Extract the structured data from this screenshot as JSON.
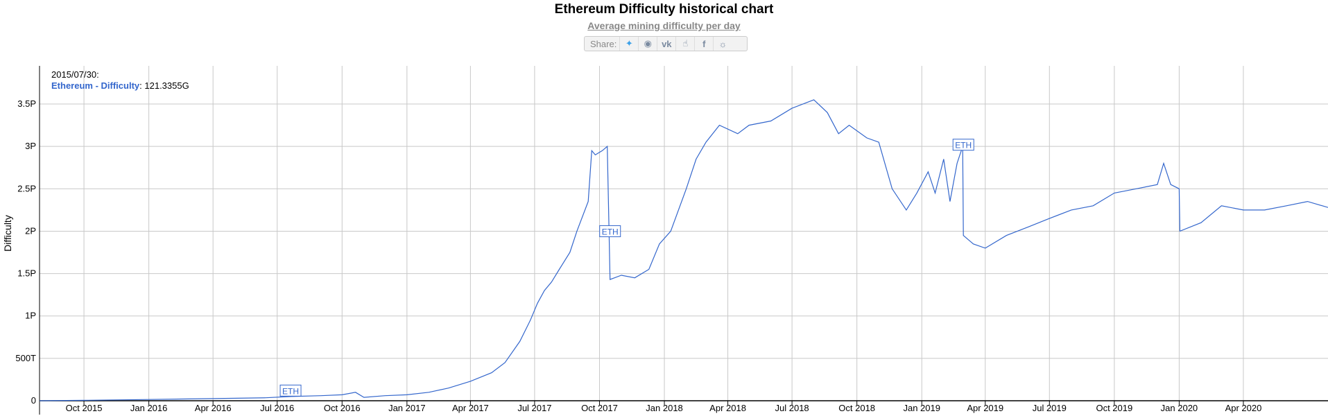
{
  "header": {
    "title": "Ethereum Difficulty historical chart",
    "subtitle": "Average mining difficulty per day"
  },
  "share": {
    "label": "Share:",
    "icons": [
      "twitter-icon",
      "reddit-icon",
      "vk-icon",
      "like-icon",
      "facebook-icon",
      "weibo-icon"
    ]
  },
  "readout": {
    "date": "2015/07/30:",
    "series_name": "Ethereum - Difficulty",
    "sep": ":",
    "value": "121.3355G"
  },
  "colors": {
    "line": "#3366cc",
    "grid": "#c8c8c8",
    "axis": "#000000"
  },
  "chart_data": {
    "type": "line",
    "title": "Ethereum Difficulty historical chart",
    "subtitle": "Average mining difficulty per day",
    "ylabel": "Difficulty",
    "xlabel": "",
    "y_ticks": [
      {
        "value": 0,
        "label": "0"
      },
      {
        "value": 500,
        "label": "500T"
      },
      {
        "value": 1000,
        "label": "1P"
      },
      {
        "value": 1500,
        "label": "1.5P"
      },
      {
        "value": 2000,
        "label": "2P"
      },
      {
        "value": 2500,
        "label": "2.5P"
      },
      {
        "value": 3000,
        "label": "3P"
      },
      {
        "value": 3500,
        "label": "3.5P"
      }
    ],
    "y_units": "TH",
    "ylim": [
      0,
      3950
    ],
    "xlim": [
      "2015-07-30",
      "2020-07-30"
    ],
    "x_ticks": [
      {
        "date": "2015-10-01",
        "label": "Oct 2015"
      },
      {
        "date": "2016-01-01",
        "label": "Jan 2016"
      },
      {
        "date": "2016-04-01",
        "label": "Apr 2016"
      },
      {
        "date": "2016-07-01",
        "label": "Jul 2016"
      },
      {
        "date": "2016-10-01",
        "label": "Oct 2016"
      },
      {
        "date": "2017-01-01",
        "label": "Jan 2017"
      },
      {
        "date": "2017-04-01",
        "label": "Apr 2017"
      },
      {
        "date": "2017-07-01",
        "label": "Jul 2017"
      },
      {
        "date": "2017-10-01",
        "label": "Oct 2017"
      },
      {
        "date": "2018-01-01",
        "label": "Jan 2018"
      },
      {
        "date": "2018-04-01",
        "label": "Apr 2018"
      },
      {
        "date": "2018-07-01",
        "label": "Jul 2018"
      },
      {
        "date": "2018-10-01",
        "label": "Oct 2018"
      },
      {
        "date": "2019-01-01",
        "label": "Jan 2019"
      },
      {
        "date": "2019-04-01",
        "label": "Apr 2019"
      },
      {
        "date": "2019-07-01",
        "label": "Jul 2019"
      },
      {
        "date": "2019-10-01",
        "label": "Oct 2019"
      },
      {
        "date": "2020-01-01",
        "label": "Jan 2020"
      },
      {
        "date": "2020-04-01",
        "label": "Apr 2020"
      }
    ],
    "grid": true,
    "series": [
      {
        "name": "Ethereum - Difficulty",
        "points": [
          [
            "2015-07-30",
            0.12
          ],
          [
            "2015-10-01",
            5
          ],
          [
            "2016-01-01",
            15
          ],
          [
            "2016-04-01",
            25
          ],
          [
            "2016-06-15",
            35
          ],
          [
            "2016-07-20",
            50
          ],
          [
            "2016-09-01",
            60
          ],
          [
            "2016-10-01",
            70
          ],
          [
            "2016-10-20",
            100
          ],
          [
            "2016-11-01",
            40
          ],
          [
            "2016-12-01",
            60
          ],
          [
            "2017-01-01",
            70
          ],
          [
            "2017-02-01",
            100
          ],
          [
            "2017-03-01",
            150
          ],
          [
            "2017-04-01",
            230
          ],
          [
            "2017-05-01",
            330
          ],
          [
            "2017-05-20",
            450
          ],
          [
            "2017-06-10",
            700
          ],
          [
            "2017-06-25",
            950
          ],
          [
            "2017-07-05",
            1150
          ],
          [
            "2017-07-15",
            1300
          ],
          [
            "2017-07-25",
            1400
          ],
          [
            "2017-08-05",
            1550
          ],
          [
            "2017-08-20",
            1750
          ],
          [
            "2017-08-30",
            2000
          ],
          [
            "2017-09-15",
            2350
          ],
          [
            "2017-09-20",
            2950
          ],
          [
            "2017-09-25",
            2900
          ],
          [
            "2017-10-05",
            2950
          ],
          [
            "2017-10-12",
            3000
          ],
          [
            "2017-10-16",
            1430
          ],
          [
            "2017-11-01",
            1480
          ],
          [
            "2017-11-20",
            1450
          ],
          [
            "2017-12-10",
            1550
          ],
          [
            "2017-12-25",
            1850
          ],
          [
            "2018-01-10",
            2000
          ],
          [
            "2018-02-01",
            2500
          ],
          [
            "2018-02-15",
            2850
          ],
          [
            "2018-03-01",
            3050
          ],
          [
            "2018-03-20",
            3250
          ],
          [
            "2018-04-15",
            3150
          ],
          [
            "2018-05-01",
            3250
          ],
          [
            "2018-06-01",
            3300
          ],
          [
            "2018-07-01",
            3450
          ],
          [
            "2018-08-01",
            3550
          ],
          [
            "2018-08-20",
            3400
          ],
          [
            "2018-09-05",
            3150
          ],
          [
            "2018-09-20",
            3250
          ],
          [
            "2018-10-15",
            3100
          ],
          [
            "2018-11-01",
            3050
          ],
          [
            "2018-11-20",
            2500
          ],
          [
            "2018-12-10",
            2250
          ],
          [
            "2018-12-25",
            2450
          ],
          [
            "2019-01-10",
            2700
          ],
          [
            "2019-01-20",
            2450
          ],
          [
            "2019-02-01",
            2850
          ],
          [
            "2019-02-10",
            2350
          ],
          [
            "2019-02-20",
            2800
          ],
          [
            "2019-02-28",
            3000
          ],
          [
            "2019-03-01",
            1950
          ],
          [
            "2019-03-15",
            1850
          ],
          [
            "2019-04-01",
            1800
          ],
          [
            "2019-05-01",
            1950
          ],
          [
            "2019-06-01",
            2050
          ],
          [
            "2019-07-01",
            2150
          ],
          [
            "2019-08-01",
            2250
          ],
          [
            "2019-09-01",
            2300
          ],
          [
            "2019-10-01",
            2450
          ],
          [
            "2019-11-01",
            2500
          ],
          [
            "2019-12-01",
            2550
          ],
          [
            "2019-12-10",
            2800
          ],
          [
            "2019-12-20",
            2550
          ],
          [
            "2020-01-01",
            2500
          ],
          [
            "2020-01-02",
            2000
          ],
          [
            "2020-02-01",
            2100
          ],
          [
            "2020-03-01",
            2300
          ],
          [
            "2020-04-01",
            2250
          ],
          [
            "2020-05-01",
            2250
          ],
          [
            "2020-06-01",
            2300
          ],
          [
            "2020-07-01",
            2350
          ],
          [
            "2020-07-30",
            2280
          ]
        ]
      }
    ],
    "annotations": [
      {
        "date": "2016-07-20",
        "y": 120,
        "label": "ETH"
      },
      {
        "date": "2017-10-16",
        "y": 2000,
        "label": "ETH"
      },
      {
        "date": "2019-03-01",
        "y": 3020,
        "label": "ETH"
      }
    ]
  }
}
